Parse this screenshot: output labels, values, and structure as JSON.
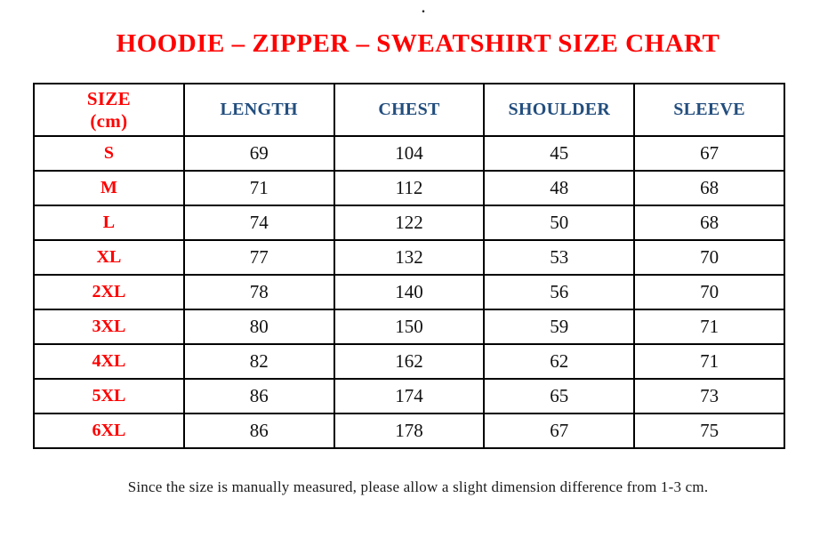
{
  "page": {
    "top_mark": ".",
    "title": "HOODIE – ZIPPER – SWEATSHIRT SIZE CHART",
    "footnote": "Since the size is manually measured, please allow a slight dimension difference from 1-3 cm."
  },
  "colors": {
    "title_red": "#fe0000",
    "size_label_red": "#fe0000",
    "header_blue": "#234e7e",
    "value_text": "#111111",
    "table_border": "#000000",
    "background": "#ffffff"
  },
  "chart_data": {
    "type": "table",
    "title": "HOODIE – ZIPPER – SWEATSHIRT SIZE CHART",
    "units": "cm",
    "columns": [
      "SIZE\n(cm)",
      "LENGTH",
      "CHEST",
      "SHOULDER",
      "SLEEVE"
    ],
    "rows": [
      [
        "S",
        69,
        104,
        45,
        67
      ],
      [
        "M",
        71,
        112,
        48,
        68
      ],
      [
        "L",
        74,
        122,
        50,
        68
      ],
      [
        "XL",
        77,
        132,
        53,
        70
      ],
      [
        "2XL",
        78,
        140,
        56,
        70
      ],
      [
        "3XL",
        80,
        150,
        59,
        71
      ],
      [
        "4XL",
        82,
        162,
        62,
        71
      ],
      [
        "5XL",
        86,
        174,
        65,
        73
      ],
      [
        "6XL",
        86,
        178,
        67,
        75
      ]
    ]
  }
}
